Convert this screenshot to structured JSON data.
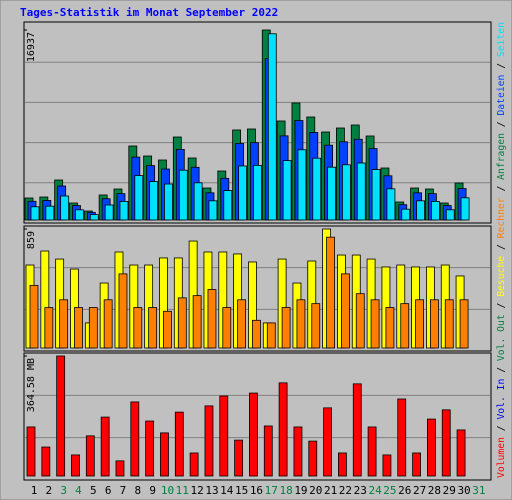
{
  "chart_data": [
    {
      "type": "bar",
      "title": "Tages-Statistik im Monat September 2022",
      "ylim": [
        0,
        16937
      ],
      "yticks": [
        16937
      ],
      "series": [
        {
          "name": "Anfragen",
          "color": "#008040",
          "values": [
            1961,
            2050,
            3566,
            1515,
            802,
            2229,
            2763,
            6596,
            5705,
            5348,
            7399,
            5527,
            2852,
            4368,
            8023,
            8112,
            16937,
            8825,
            10430,
            9181,
            7844,
            8201,
            8468,
            7488,
            4635,
            1605,
            2852,
            2763,
            1515,
            3298,
            null
          ]
        },
        {
          "name": "Dateien",
          "color": "#0040ff",
          "values": [
            1667,
            1743,
            3031,
            1288,
            682,
            1895,
            2349,
            5607,
            4849,
            4546,
            6289,
            4698,
            2424,
            3713,
            6820,
            6895,
            14396,
            7501,
            8866,
            7804,
            6667,
            6971,
            7198,
            6365,
            3940,
            1364,
            2424,
            2349,
            1288,
            2803,
            null
          ]
        },
        {
          "name": "Seiten",
          "color": "#00e0ff",
          "values": [
            1177,
            1230,
            2140,
            909,
            481,
            1337,
            1658,
            3958,
            3423,
            3209,
            4439,
            3316,
            1711,
            2621,
            4814,
            4867,
            16600,
            5295,
            6258,
            5509,
            4706,
            4921,
            5081,
            4493,
            2781,
            963,
            1711,
            1658,
            909,
            1979,
            null
          ]
        }
      ]
    },
    {
      "type": "bar",
      "ylim": [
        0,
        859
      ],
      "yticks": [
        859
      ],
      "series": [
        {
          "name": "Besuche",
          "color": "#ffff00",
          "values": [
            599,
            700,
            642,
            570,
            181,
            469,
            693,
            599,
            599,
            650,
            650,
            772,
            693,
            693,
            679,
            621,
            181,
            642,
            469,
            628,
            859,
            671,
            671,
            642,
            585,
            599,
            585,
            585,
            599,
            520,
            null
          ]
        },
        {
          "name": "Rechner",
          "color": "#ff8000",
          "values": [
            452,
            292,
            348,
            292,
            292,
            348,
            535,
            292,
            292,
            265,
            362,
            378,
            422,
            292,
            348,
            200,
            181,
            292,
            348,
            320,
            800,
            535,
            392,
            348,
            292,
            320,
            348,
            348,
            348,
            348,
            null
          ]
        }
      ]
    },
    {
      "type": "bar",
      "ylim": [
        0,
        364.58
      ],
      "yticks": [
        {
          "value": 364.58,
          "label": "364.58 MB"
        }
      ],
      "categories": [
        "1",
        "2",
        "3",
        "4",
        "5",
        "6",
        "7",
        "8",
        "9",
        "10",
        "11",
        "12",
        "13",
        "14",
        "15",
        "16",
        "17",
        "18",
        "19",
        "20",
        "21",
        "22",
        "23",
        "24",
        "25",
        "26",
        "27",
        "28",
        "29",
        "30",
        "31"
      ],
      "category_colors": [
        "#000000",
        "#000000",
        "#008040",
        "#008040",
        "#000000",
        "#000000",
        "#000000",
        "#000000",
        "#000000",
        "#008040",
        "#008040",
        "#000000",
        "#000000",
        "#000000",
        "#000000",
        "#000000",
        "#008040",
        "#008040",
        "#000000",
        "#000000",
        "#000000",
        "#000000",
        "#000000",
        "#008040",
        "#008040",
        "#000000",
        "#000000",
        "#000000",
        "#000000",
        "#000000",
        "#008040"
      ],
      "series": [
        {
          "name": "Volumen",
          "color": "#ff0000",
          "values": [
            149,
            88,
            364.58,
            64,
            122,
            179,
            46,
            225,
            167,
            131,
            194,
            70,
            213,
            243,
            109,
            252,
            152,
            283,
            149,
            106,
            207,
            70,
            280,
            149,
            64,
            234,
            70,
            173,
            201,
            140,
            null
          ]
        },
        {
          "name": "Vol. In",
          "color": "#0000ff"
        },
        {
          "name": "Vol. Out",
          "color": "#008040"
        }
      ]
    }
  ]
}
